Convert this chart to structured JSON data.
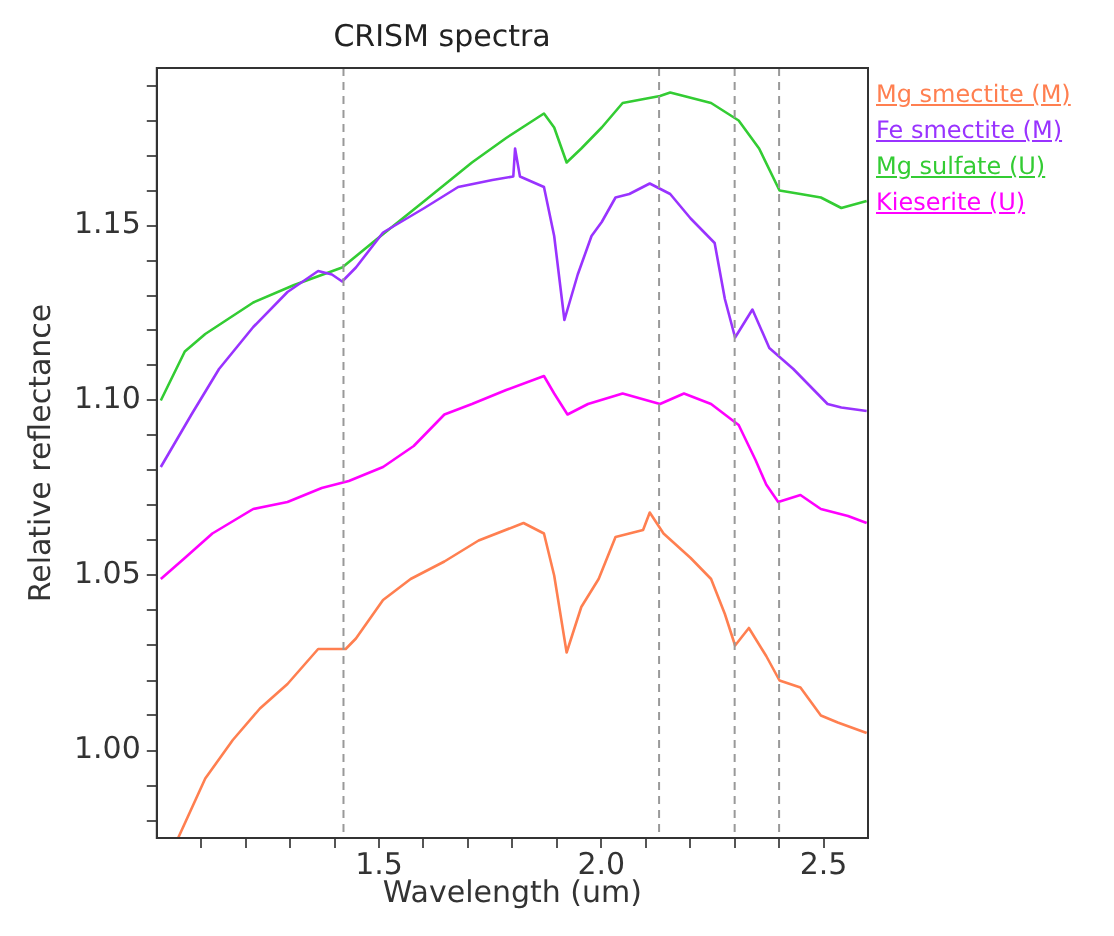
{
  "chart_data": {
    "type": "line",
    "title": "CRISM spectra",
    "xlabel": "Wavelength (um)",
    "ylabel": "Relative reflectance",
    "xlim": [
      1.0,
      2.6
    ],
    "ylim": [
      0.975,
      1.195
    ],
    "xticks": [
      {
        "value": 1.1,
        "label": null
      },
      {
        "value": 1.2,
        "label": null
      },
      {
        "value": 1.3,
        "label": null
      },
      {
        "value": 1.4,
        "label": null
      },
      {
        "value": 1.5,
        "label": "1.5"
      },
      {
        "value": 1.6,
        "label": null
      },
      {
        "value": 1.7,
        "label": null
      },
      {
        "value": 1.8,
        "label": null
      },
      {
        "value": 1.9,
        "label": null
      },
      {
        "value": 2.0,
        "label": "2.0"
      },
      {
        "value": 2.1,
        "label": null
      },
      {
        "value": 2.2,
        "label": null
      },
      {
        "value": 2.3,
        "label": null
      },
      {
        "value": 2.4,
        "label": null
      },
      {
        "value": 2.5,
        "label": "2.5"
      }
    ],
    "yticks": [
      {
        "value": 0.98,
        "label": null
      },
      {
        "value": 0.99,
        "label": null
      },
      {
        "value": 1.0,
        "label": "1.00"
      },
      {
        "value": 1.01,
        "label": null
      },
      {
        "value": 1.02,
        "label": null
      },
      {
        "value": 1.03,
        "label": null
      },
      {
        "value": 1.04,
        "label": null
      },
      {
        "value": 1.05,
        "label": "1.05"
      },
      {
        "value": 1.06,
        "label": null
      },
      {
        "value": 1.07,
        "label": null
      },
      {
        "value": 1.08,
        "label": null
      },
      {
        "value": 1.09,
        "label": null
      },
      {
        "value": 1.1,
        "label": "1.10"
      },
      {
        "value": 1.11,
        "label": null
      },
      {
        "value": 1.12,
        "label": null
      },
      {
        "value": 1.13,
        "label": null
      },
      {
        "value": 1.14,
        "label": null
      },
      {
        "value": 1.15,
        "label": "1.15"
      },
      {
        "value": 1.16,
        "label": null
      },
      {
        "value": 1.17,
        "label": null
      },
      {
        "value": 1.18,
        "label": null
      },
      {
        "value": 1.19,
        "label": null
      }
    ],
    "grid": false,
    "legend": "top right",
    "ref_lines": [
      {
        "axis": "x",
        "value": 1.42,
        "color": "#999999",
        "line_style": "dashed"
      },
      {
        "axis": "x",
        "value": 2.13,
        "color": "#999999",
        "line_style": "dashed"
      },
      {
        "axis": "x",
        "value": 2.3,
        "color": "#999999",
        "line_style": "dashed"
      },
      {
        "axis": "x",
        "value": 2.4,
        "color": "#999999",
        "line_style": "dashed"
      }
    ],
    "series": [
      {
        "name": "Mg smectite (M)",
        "color": "#ff7f50",
        "x": [
          1.048,
          1.109,
          1.171,
          1.232,
          1.294,
          1.363,
          1.425,
          1.448,
          1.509,
          1.571,
          1.647,
          1.724,
          1.825,
          1.871,
          1.894,
          1.922,
          1.955,
          1.994,
          2.032,
          2.094,
          2.109,
          2.14,
          2.201,
          2.247,
          2.278,
          2.301,
          2.332,
          2.371,
          2.401,
          2.448,
          2.494,
          2.532,
          2.597
        ],
        "values": [
          0.975,
          0.992,
          1.003,
          1.012,
          1.019,
          1.029,
          1.029,
          1.032,
          1.043,
          1.049,
          1.054,
          1.06,
          1.065,
          1.062,
          1.05,
          1.028,
          1.041,
          1.049,
          1.061,
          1.063,
          1.068,
          1.062,
          1.055,
          1.049,
          1.039,
          1.03,
          1.035,
          1.027,
          1.02,
          1.018,
          1.01,
          1.008,
          1.005
        ]
      },
      {
        "name": "Fe smectite (M)",
        "color": "#9933ff",
        "x": [
          1.009,
          1.078,
          1.14,
          1.217,
          1.294,
          1.363,
          1.394,
          1.417,
          1.448,
          1.509,
          1.602,
          1.678,
          1.755,
          1.802,
          1.806,
          1.817,
          1.871,
          1.894,
          1.917,
          1.947,
          1.978,
          2.001,
          2.032,
          2.063,
          2.109,
          2.155,
          2.201,
          2.255,
          2.278,
          2.301,
          2.34,
          2.378,
          2.432,
          2.509,
          2.54,
          2.597
        ],
        "values": [
          1.081,
          1.096,
          1.109,
          1.121,
          1.131,
          1.137,
          1.136,
          1.134,
          1.138,
          1.148,
          1.155,
          1.161,
          1.163,
          1.164,
          1.172,
          1.164,
          1.161,
          1.147,
          1.123,
          1.136,
          1.147,
          1.151,
          1.158,
          1.159,
          1.162,
          1.159,
          1.152,
          1.145,
          1.129,
          1.118,
          1.126,
          1.115,
          1.109,
          1.099,
          1.098,
          1.097
        ]
      },
      {
        "name": "Mg sulfate (U)",
        "color": "#33cc33",
        "x": [
          1.009,
          1.063,
          1.109,
          1.217,
          1.309,
          1.417,
          1.494,
          1.602,
          1.709,
          1.786,
          1.871,
          1.894,
          1.922,
          1.955,
          2.001,
          2.048,
          2.132,
          2.155,
          2.247,
          2.309,
          2.355,
          2.401,
          2.448,
          2.494,
          2.54,
          2.597
        ],
        "values": [
          1.1,
          1.114,
          1.119,
          1.128,
          1.133,
          1.138,
          1.146,
          1.157,
          1.168,
          1.175,
          1.182,
          1.178,
          1.168,
          1.172,
          1.178,
          1.185,
          1.187,
          1.188,
          1.185,
          1.18,
          1.172,
          1.16,
          1.159,
          1.158,
          1.155,
          1.157
        ]
      },
      {
        "name": "Kieserite (U)",
        "color": "#ff00ff",
        "x": [
          1.009,
          1.063,
          1.125,
          1.217,
          1.294,
          1.371,
          1.432,
          1.509,
          1.578,
          1.647,
          1.709,
          1.786,
          1.871,
          1.894,
          1.924,
          1.97,
          2.048,
          2.132,
          2.186,
          2.247,
          2.309,
          2.347,
          2.371,
          2.398,
          2.448,
          2.494,
          2.555,
          2.597
        ],
        "values": [
          1.049,
          1.055,
          1.062,
          1.069,
          1.071,
          1.075,
          1.077,
          1.081,
          1.087,
          1.096,
          1.099,
          1.103,
          1.107,
          1.102,
          1.096,
          1.099,
          1.102,
          1.099,
          1.102,
          1.099,
          1.093,
          1.083,
          1.076,
          1.071,
          1.073,
          1.069,
          1.067,
          1.065
        ]
      }
    ]
  }
}
